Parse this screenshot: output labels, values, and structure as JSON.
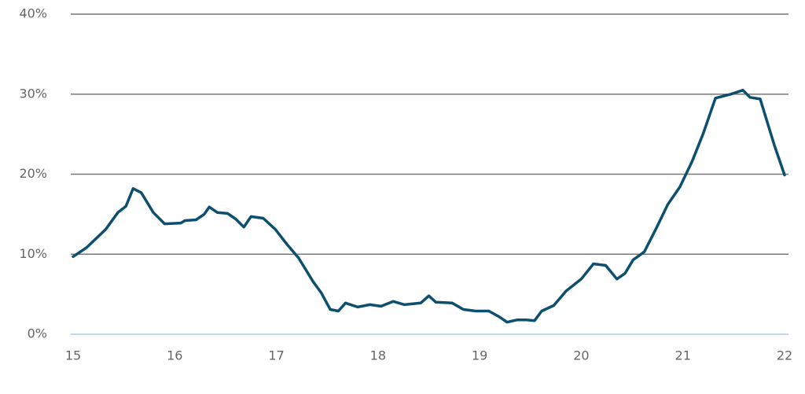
{
  "chart_data": {
    "type": "line",
    "x": [
      15.0,
      15.13,
      15.32,
      15.44,
      15.52,
      15.59,
      15.67,
      15.79,
      15.9,
      16.06,
      16.1,
      16.21,
      16.29,
      16.34,
      16.42,
      16.52,
      16.6,
      16.68,
      16.75,
      16.87,
      16.99,
      17.1,
      17.22,
      17.36,
      17.44,
      17.53,
      17.61,
      17.68,
      17.8,
      17.92,
      18.03,
      18.15,
      18.26,
      18.42,
      18.5,
      18.57,
      18.73,
      18.84,
      18.96,
      19.09,
      19.19,
      19.27,
      19.37,
      19.46,
      19.54,
      19.61,
      19.73,
      19.85,
      20.0,
      20.12,
      20.24,
      20.35,
      20.43,
      20.51,
      20.62,
      20.74,
      20.85,
      20.97,
      21.09,
      21.2,
      21.32,
      21.47,
      21.59,
      21.66,
      21.76,
      21.9,
      22.0
    ],
    "series": [
      {
        "color": "#0d4f6e",
        "values": [
          9.7,
          10.8,
          13.1,
          15.2,
          16.0,
          18.2,
          17.7,
          15.2,
          13.8,
          13.9,
          14.2,
          14.3,
          15.0,
          15.9,
          15.2,
          15.1,
          14.4,
          13.4,
          14.7,
          14.5,
          13.1,
          11.3,
          9.5,
          6.6,
          5.2,
          3.1,
          2.9,
          3.9,
          3.4,
          3.7,
          3.5,
          4.1,
          3.7,
          3.9,
          4.8,
          4.0,
          3.9,
          3.1,
          2.9,
          2.9,
          2.2,
          1.5,
          1.8,
          1.8,
          1.7,
          2.9,
          3.6,
          5.4,
          6.9,
          8.8,
          8.6,
          6.9,
          7.6,
          9.3,
          10.3,
          13.3,
          16.2,
          18.4,
          21.6,
          25.1,
          29.5,
          30.0,
          30.5,
          29.6,
          29.4,
          23.6,
          19.9
        ]
      }
    ],
    "xlim": [
      15,
      22
    ],
    "xticks": [
      15,
      16,
      17,
      18,
      19,
      20,
      21,
      22
    ],
    "ylim": [
      0,
      40
    ],
    "yticks": [
      {
        "value": 0,
        "label": "0%"
      },
      {
        "value": 10,
        "label": "10%"
      },
      {
        "value": 20,
        "label": "20%"
      },
      {
        "value": 30,
        "label": "30%"
      },
      {
        "value": 40,
        "label": "40%"
      }
    ],
    "grid": true
  }
}
